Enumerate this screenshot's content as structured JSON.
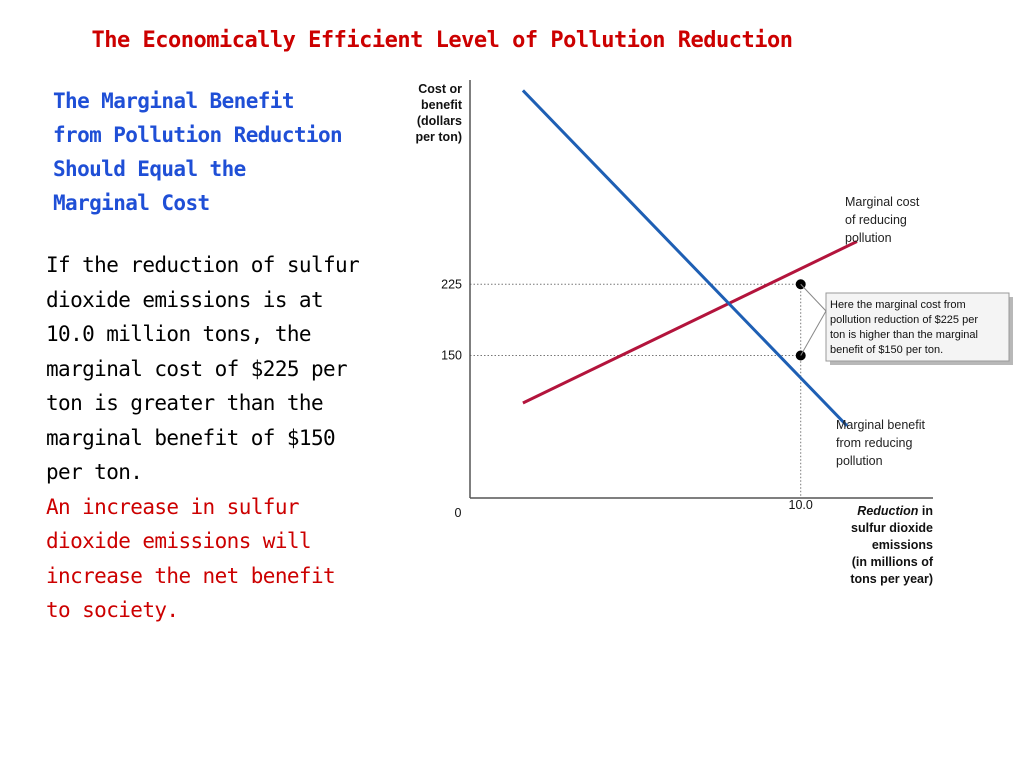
{
  "slide": {
    "title": "The Economically Efficient Level of Pollution Reduction",
    "subtitle_lines": [
      "The Marginal Benefit",
      "from Pollution Reduction",
      "Should Equal the",
      "Marginal Cost"
    ],
    "body_lines": [
      "If the reduction of sulfur",
      "dioxide emissions is at",
      "10.0 million tons, the",
      "marginal cost of $225 per",
      "ton is greater than the",
      "marginal benefit of $150",
      "per ton."
    ],
    "conclusion_lines": [
      "An increase in sulfur",
      "dioxide emissions will",
      "increase the net benefit",
      "to society."
    ],
    "colors": {
      "title": "#cc0000",
      "subtitle": "#1f4fd6",
      "conclusion": "#cc0000"
    }
  },
  "chart_data": {
    "type": "line",
    "ylabel_lines": [
      "Cost or",
      "benefit",
      "(dollars",
      "per ton)"
    ],
    "xlabel_lines": [
      "Reduction in",
      "sulfur dioxide",
      "emissions",
      "(in millions of",
      "tons per year)"
    ],
    "xlabel_italic_word": "Reduction",
    "origin_label": "0",
    "y_ticks": [
      {
        "value": 225,
        "label": "225"
      },
      {
        "value": 150,
        "label": "150"
      }
    ],
    "x_ticks": [
      {
        "value": 10.0,
        "label": "10.0"
      }
    ],
    "xlim": [
      0,
      14
    ],
    "ylim": [
      0,
      440
    ],
    "series": [
      {
        "name": "Marginal cost of reducing pollution",
        "label_lines": [
          "Marginal cost",
          "of reducing",
          "pollution"
        ],
        "color": "#b3143c",
        "points": [
          [
            1.6,
            100
          ],
          [
            11.7,
            270
          ]
        ]
      },
      {
        "name": "Marginal benefit from reducing pollution",
        "label_lines": [
          "Marginal benefit",
          "from reducing",
          "pollution"
        ],
        "color": "#1e5fb4",
        "points": [
          [
            1.6,
            429
          ],
          [
            11.4,
            76
          ]
        ]
      }
    ],
    "highlight_points": [
      {
        "x": 10.0,
        "y": 225
      },
      {
        "x": 10.0,
        "y": 150
      }
    ],
    "callout": {
      "lines": [
        "Here the marginal cost from",
        "pollution reduction of $225 per",
        "ton is higher than the marginal",
        "benefit of $150 per ton."
      ]
    },
    "grid": false,
    "guide_lines": "dotted"
  }
}
